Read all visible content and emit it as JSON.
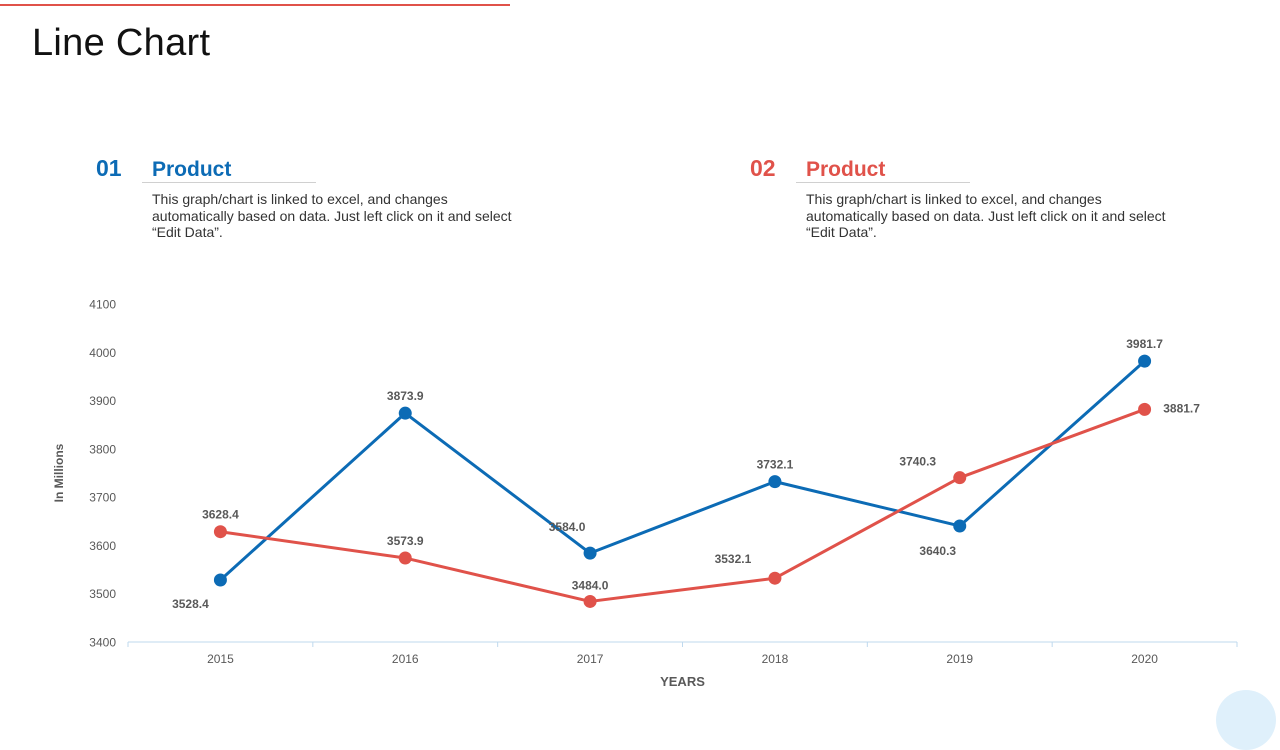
{
  "page": {
    "title": "Line Chart"
  },
  "legend": [
    {
      "number": "01",
      "label": "Product",
      "description": "This graph/chart is linked to excel, and changes automatically based on data. Just left click on it and select “Edit Data”.",
      "color": "#0c6bb5"
    },
    {
      "number": "02",
      "label": "Product",
      "description": "This graph/chart is linked to excel, and changes automatically based on data. Just left click on it and select “Edit Data”.",
      "color": "#e0524a"
    }
  ],
  "chart_data": {
    "type": "line",
    "title": "",
    "xlabel": "YEARS",
    "ylabel": "In Millions",
    "categories": [
      "2015",
      "2016",
      "2017",
      "2018",
      "2019",
      "2020"
    ],
    "ylim": [
      3400,
      4100
    ],
    "yticks": [
      3400,
      3500,
      3600,
      3700,
      3800,
      3900,
      4000,
      4100
    ],
    "grid": false,
    "series": [
      {
        "name": "Product 01",
        "color": "#0c6bb5",
        "values": [
          3528.4,
          3873.9,
          3584.0,
          3732.1,
          3640.3,
          3981.7
        ],
        "labels": [
          "3528.4",
          "3873.9",
          "3584.0",
          "3732.1",
          "3640.3",
          "3981.7"
        ]
      },
      {
        "name": "Product 02",
        "color": "#e0524a",
        "values": [
          3628.4,
          3573.9,
          3484.0,
          3532.1,
          3740.3,
          3881.7
        ],
        "labels": [
          "3628.4",
          "3573.9",
          "3484.0",
          "3532.1",
          "3740.3",
          "3881.7"
        ]
      }
    ]
  }
}
